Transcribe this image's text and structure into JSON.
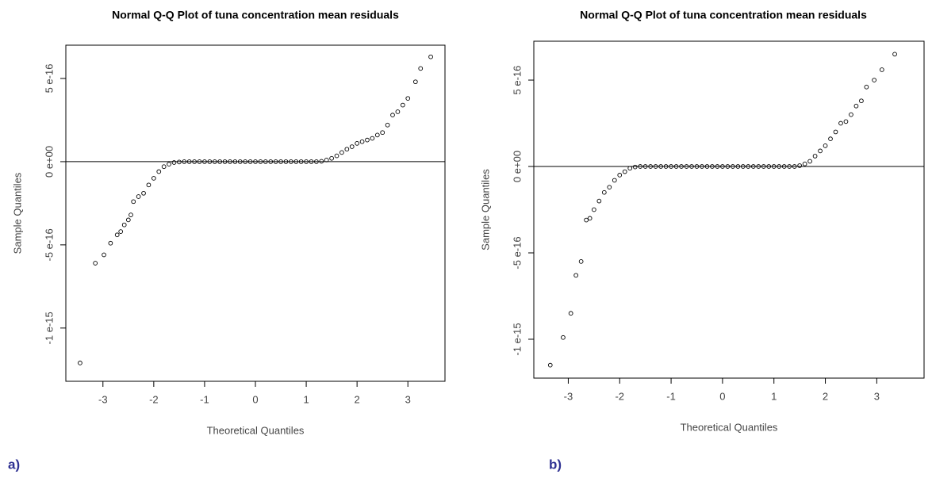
{
  "chart_data": [
    {
      "type": "scatter",
      "title": "Normal Q-Q Plot of tuna concentration mean residuals",
      "xlabel": "Theoretical Quantiles",
      "ylabel": "Sample Quantiles",
      "panel_label": "a)",
      "x": [
        -3.45,
        -3.15,
        -2.98,
        -2.85,
        -2.72,
        -2.65,
        -2.58,
        -2.5,
        -2.45,
        -2.4,
        -2.3,
        -2.2,
        -2.1,
        -2.0,
        -1.9,
        -1.8,
        -1.7,
        -1.6,
        -1.5,
        -1.4,
        -1.3,
        -1.2,
        -1.1,
        -1.0,
        -0.9,
        -0.8,
        -0.7,
        -0.6,
        -0.5,
        -0.4,
        -0.3,
        -0.2,
        -0.1,
        0,
        0.1,
        0.2,
        0.3,
        0.4,
        0.5,
        0.6,
        0.7,
        0.8,
        0.9,
        1.0,
        1.1,
        1.2,
        1.3,
        1.4,
        1.5,
        1.6,
        1.7,
        1.8,
        1.9,
        2.0,
        2.1,
        2.2,
        2.3,
        2.4,
        2.5,
        2.6,
        2.7,
        2.8,
        2.9,
        3.0,
        3.15,
        3.25,
        3.45
      ],
      "values": [
        -1.21e-15,
        -6.1e-16,
        -5.6e-16,
        -4.9e-16,
        -4.4e-16,
        -4.2e-16,
        -3.8e-16,
        -3.5e-16,
        -3.2e-16,
        -2.4e-16,
        -2.1e-16,
        -1.9e-16,
        -1.4e-16,
        -1e-16,
        -6e-17,
        -3e-17,
        -1.5e-17,
        -5e-18,
        -2e-18,
        0,
        0,
        0,
        0,
        0,
        0,
        0,
        0,
        0,
        0,
        0,
        0,
        0,
        0,
        0,
        0,
        0,
        0,
        0,
        0,
        0,
        0,
        0,
        0,
        0,
        0,
        0,
        2e-18,
        1e-17,
        2e-17,
        3.5e-17,
        5.5e-17,
        7.5e-17,
        9e-17,
        1.1e-16,
        1.2e-16,
        1.3e-16,
        1.4e-16,
        1.6e-16,
        1.75e-16,
        2.2e-16,
        2.8e-16,
        3e-16,
        3.4e-16,
        3.8e-16,
        4.8e-16,
        5.6e-16,
        6.3e-16
      ],
      "color": "#000000",
      "hline": 0,
      "xlim": [
        -3.73,
        3.73
      ],
      "ylim": [
        -1.32e-15,
        7e-16
      ],
      "xticks": [
        -3,
        -2,
        -1,
        0,
        1,
        2,
        3
      ],
      "yticks": [
        {
          "value": -1e-15,
          "label": "-1 e-15"
        },
        {
          "value": -5e-16,
          "label": "-5 e-16"
        },
        {
          "value": 0,
          "label": "0 e+00"
        },
        {
          "value": 5e-16,
          "label": "5 e-16"
        }
      ]
    },
    {
      "type": "scatter",
      "title": "Normal Q-Q Plot of tuna concentration mean residuals",
      "xlabel": "Theoretical Quantiles",
      "ylabel": "Sample Quantiles",
      "panel_label": "b)",
      "x": [
        -3.35,
        -3.1,
        -2.95,
        -2.85,
        -2.75,
        -2.65,
        -2.58,
        -2.5,
        -2.4,
        -2.3,
        -2.2,
        -2.1,
        -2.0,
        -1.9,
        -1.8,
        -1.7,
        -1.6,
        -1.5,
        -1.4,
        -1.3,
        -1.2,
        -1.1,
        -1.0,
        -0.9,
        -0.8,
        -0.7,
        -0.6,
        -0.5,
        -0.4,
        -0.3,
        -0.2,
        -0.1,
        0,
        0.1,
        0.2,
        0.3,
        0.4,
        0.5,
        0.6,
        0.7,
        0.8,
        0.9,
        1.0,
        1.1,
        1.2,
        1.3,
        1.4,
        1.5,
        1.6,
        1.7,
        1.8,
        1.9,
        2.0,
        2.1,
        2.2,
        2.3,
        2.4,
        2.5,
        2.6,
        2.7,
        2.8,
        2.95,
        3.1,
        3.35
      ],
      "values": [
        -1.15e-15,
        -9.9e-16,
        -8.5e-16,
        -6.3e-16,
        -5.5e-16,
        -3.1e-16,
        -3e-16,
        -2.5e-16,
        -2e-16,
        -1.5e-16,
        -1.2e-16,
        -8e-17,
        -5e-17,
        -3e-17,
        -1e-17,
        -3e-18,
        0,
        0,
        0,
        0,
        0,
        0,
        0,
        0,
        0,
        0,
        0,
        0,
        0,
        0,
        0,
        0,
        0,
        0,
        0,
        0,
        0,
        0,
        0,
        0,
        0,
        0,
        0,
        0,
        0,
        0,
        0,
        5e-18,
        1.5e-17,
        3e-17,
        6e-17,
        9e-17,
        1.2e-16,
        1.6e-16,
        2e-16,
        2.5e-16,
        2.6e-16,
        3e-16,
        3.5e-16,
        3.8e-16,
        4.6e-16,
        5e-16,
        5.6e-16,
        6.5e-16
      ],
      "color": "#000000",
      "hline": 0,
      "xlim": [
        -3.67,
        3.92
      ],
      "ylim": [
        -1.225e-15,
        7.25e-16
      ],
      "xticks": [
        -3,
        -2,
        -1,
        0,
        1,
        2,
        3
      ],
      "yticks": [
        {
          "value": -1e-15,
          "label": "-1 e-15"
        },
        {
          "value": -5e-16,
          "label": "-5 e-16"
        },
        {
          "value": 0,
          "label": "0 e+00"
        },
        {
          "value": 5e-16,
          "label": "5 e-16"
        }
      ]
    }
  ]
}
